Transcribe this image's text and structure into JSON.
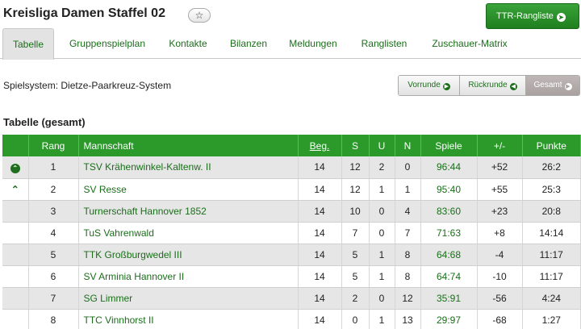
{
  "header": {
    "title": "Kreisliga Damen Staffel 02",
    "star_glyph": "☆",
    "ttr_label": "TTR-Rangliste"
  },
  "tabs": [
    {
      "label": "Tabelle",
      "active": true
    },
    {
      "label": "Gruppenspielplan"
    },
    {
      "label": "Kontakte"
    },
    {
      "label": "Bilanzen"
    },
    {
      "label": "Meldungen"
    },
    {
      "label": "Ranglisten"
    },
    {
      "label": "Zuschauer-Matrix"
    }
  ],
  "spielsystem": "Spielsystem: Dietze-Paarkreuz-System",
  "rounds": [
    {
      "label": "Vorrunde",
      "icon": "arrow-right-icon"
    },
    {
      "label": "Rückrunde",
      "icon": "arrow-left-icon"
    },
    {
      "label": "Gesamt",
      "icon": "arrow-circle-icon",
      "active": true
    }
  ],
  "section_title": "Tabelle (gesamt)",
  "table": {
    "headers": [
      "",
      "Rang",
      "Mannschaft",
      "Beg.",
      "S",
      "U",
      "N",
      "Spiele",
      "+/-",
      "Punkte"
    ],
    "rows": [
      {
        "indicator": "up-circle",
        "rang": "1",
        "team": "TSV Krähenwinkel-Kaltenw. II",
        "beg": "14",
        "s": "12",
        "u": "2",
        "n": "0",
        "spiele": "96:44",
        "diff": "+52",
        "punkte": "26:2"
      },
      {
        "indicator": "up-caret",
        "rang": "2",
        "team": "SV Resse",
        "beg": "14",
        "s": "12",
        "u": "1",
        "n": "1",
        "spiele": "95:40",
        "diff": "+55",
        "punkte": "25:3"
      },
      {
        "indicator": "",
        "rang": "3",
        "team": "Turnerschaft Hannover 1852",
        "beg": "14",
        "s": "10",
        "u": "0",
        "n": "4",
        "spiele": "83:60",
        "diff": "+23",
        "punkte": "20:8"
      },
      {
        "indicator": "",
        "rang": "4",
        "team": "TuS Vahrenwald",
        "beg": "14",
        "s": "7",
        "u": "0",
        "n": "7",
        "spiele": "71:63",
        "diff": "+8",
        "punkte": "14:14"
      },
      {
        "indicator": "",
        "rang": "5",
        "team": "TTK Großburgwedel III",
        "beg": "14",
        "s": "5",
        "u": "1",
        "n": "8",
        "spiele": "64:68",
        "diff": "-4",
        "punkte": "11:17"
      },
      {
        "indicator": "",
        "rang": "6",
        "team": "SV Arminia Hannover II",
        "beg": "14",
        "s": "5",
        "u": "1",
        "n": "8",
        "spiele": "64:74",
        "diff": "-10",
        "punkte": "11:17"
      },
      {
        "indicator": "",
        "rang": "7",
        "team": "SG Limmer",
        "beg": "14",
        "s": "2",
        "u": "0",
        "n": "12",
        "spiele": "35:91",
        "diff": "-56",
        "punkte": "4:24"
      },
      {
        "indicator": "",
        "rang": "8",
        "team": "TTC Vinnhorst II",
        "beg": "14",
        "s": "0",
        "u": "1",
        "n": "13",
        "spiele": "29:97",
        "diff": "-68",
        "punkte": "1:27"
      }
    ]
  },
  "colors": {
    "accent": "#2b9a2b",
    "link": "#1a6e1a"
  }
}
